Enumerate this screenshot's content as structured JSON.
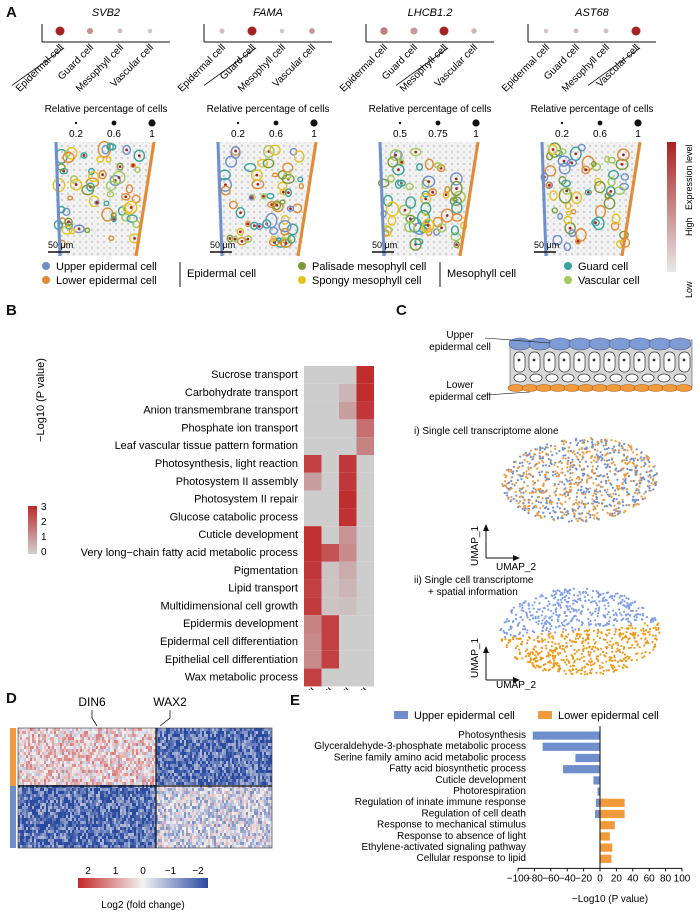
{
  "panel_a": {
    "letter": "A",
    "scale_bar": "50 μm",
    "dotplot_title": "Relative percentage of cells",
    "genes": [
      {
        "name": "SVB2",
        "tick_labels": [
          "0.2",
          "0.6",
          "1"
        ],
        "dots": [
          {
            "size": 1.0,
            "expr": 1.0
          },
          {
            "size": 0.55,
            "expr": 0.4
          },
          {
            "size": 0.35,
            "expr": 0.15
          },
          {
            "size": 0.3,
            "expr": 0.1
          }
        ]
      },
      {
        "name": "FAMA",
        "tick_labels": [
          "0.2",
          "0.6",
          "1"
        ],
        "dots": [
          {
            "size": 0.4,
            "expr": 0.15
          },
          {
            "size": 1.0,
            "expr": 1.0
          },
          {
            "size": 0.3,
            "expr": 0.1
          },
          {
            "size": 0.5,
            "expr": 0.35
          }
        ]
      },
      {
        "name": "LHCB1.2",
        "tick_labels": [
          "0.5",
          "0.75",
          "1"
        ],
        "dots": [
          {
            "size": 0.75,
            "expr": 0.5
          },
          {
            "size": 0.7,
            "expr": 0.35
          },
          {
            "size": 1.0,
            "expr": 1.0
          },
          {
            "size": 0.45,
            "expr": 0.2
          }
        ]
      },
      {
        "name": "AST68",
        "tick_labels": [
          "0.2",
          "0.6",
          "1"
        ],
        "dots": [
          {
            "size": 0.3,
            "expr": 0.1
          },
          {
            "size": 0.35,
            "expr": 0.15
          },
          {
            "size": 0.35,
            "expr": 0.15
          },
          {
            "size": 1.0,
            "expr": 1.0
          }
        ]
      }
    ],
    "cell_types": [
      "Epidermal cell",
      "Guard cell",
      "Mesophyll cell",
      "Vascular cell"
    ],
    "expression_label": "Expression level",
    "expression_high": "High",
    "expression_low": "Low",
    "legend": {
      "upper_epidermal": "Upper epidermal cell",
      "lower_epidermal": "Lower epidermal cell",
      "epidermal_group": "Epidermal cell",
      "palisade": "Palisade mesophyll cell",
      "spongy": "Spongy mesophyll cell",
      "mesophyll_group": "Mesophyll cell",
      "guard": "Guard cell",
      "vascular": "Vascular cell"
    },
    "colors": {
      "upper": "#6f8fcc",
      "lower": "#e28b32",
      "palisade": "#7a9a3a",
      "spongy": "#e6c220",
      "guard": "#3aa39a",
      "vascular": "#a7c55a",
      "dot_high": "#a82222"
    }
  },
  "panel_b": {
    "letter": "B",
    "colorbar_title": "−Log10 (P value)",
    "colorbar_ticks": [
      "3",
      "2",
      "1",
      "0"
    ],
    "chart_data": {
      "type": "heatmap",
      "columns": [
        "Epidermal cell",
        "Guard cell",
        "Mesophyll cell",
        "Vascular cell"
      ],
      "rows": [
        "Sucrose transport",
        "Carbohydrate transport",
        "Anion transmembrane transport",
        "Phosphate ion transport",
        "Leaf vascular tissue pattern formation",
        "Photosynthesis, light reaction",
        "Photosystem II assembly",
        "Photosystem II repair",
        "Glucose catabolic process",
        "Cuticle development",
        "Very long−chain fatty acid metabolic process",
        "Pigmentation",
        "Lipid transport",
        "Multidimensional cell growth",
        "Epidermis development",
        "Epidermal cell differentiation",
        "Epithelial cell differentiation",
        "Wax metabolic process"
      ],
      "values": [
        [
          0,
          0,
          0,
          3.4
        ],
        [
          0,
          0,
          0.5,
          3.4
        ],
        [
          0,
          0,
          1.0,
          3.2
        ],
        [
          0,
          0,
          0,
          2.0
        ],
        [
          0,
          0,
          0,
          1.6
        ],
        [
          3.0,
          0,
          3.2,
          0
        ],
        [
          1.0,
          0,
          3.2,
          0
        ],
        [
          0,
          0,
          3.4,
          0
        ],
        [
          0,
          0,
          3.3,
          0
        ],
        [
          3.3,
          0,
          1.2,
          0
        ],
        [
          3.3,
          2.6,
          1.4,
          0
        ],
        [
          3.2,
          0.2,
          0.7,
          0
        ],
        [
          3.0,
          0.2,
          0.5,
          0
        ],
        [
          3.1,
          0.2,
          0.3,
          0
        ],
        [
          1.6,
          3.0,
          0,
          0
        ],
        [
          1.4,
          3.0,
          0,
          0
        ],
        [
          1.4,
          3.0,
          0,
          0
        ],
        [
          3.0,
          0,
          0,
          0
        ]
      ],
      "vmin": 0,
      "vmax": 3.5
    }
  },
  "panel_c": {
    "letter": "C",
    "upper_label": [
      "Upper",
      "epidermal cell"
    ],
    "lower_label": [
      "Lower",
      "epidermal cell"
    ],
    "plot1_title": "i) Single cell transcriptome alone",
    "plot2_title": [
      "ii) Single cell transcriptome",
      "+ spatial information"
    ],
    "umap1": "UMAP_1",
    "umap2": "UMAP_2"
  },
  "panel_d": {
    "letter": "D",
    "gene1": "DIN6",
    "gene2": "WAX2",
    "colorbar_ticks": [
      "2",
      "1",
      "0",
      "−1",
      "−2"
    ],
    "colorbar_title": "Log2 (fold change)"
  },
  "panel_e": {
    "letter": "E",
    "chart_data": {
      "type": "bar",
      "orientation": "horizontal",
      "categories": [
        "Photosynthesis",
        "Glyceraldehyde-3-phosphate metabolic process",
        "Serine family amino acid metabolic process",
        "Fatty acid biosynthetic process",
        "Cuticle development",
        "Photorespiration",
        "Regulation of innate immune response",
        "Regulation of cell death",
        "Response to mechanical stimulus",
        "Response to absence of light",
        "Ethylene-activated signaling pathway",
        "Cellular response to lipid"
      ],
      "series": [
        {
          "name": "Upper epidermal cell",
          "color": "#6f8fcc",
          "values": [
            -82,
            -70,
            -30,
            -45,
            -8,
            -3,
            -5,
            -6,
            0,
            0,
            0,
            0
          ]
        },
        {
          "name": "Lower epidermal cell",
          "color": "#f09a3c",
          "values": [
            0,
            0,
            0,
            0,
            0,
            0,
            30,
            30,
            18,
            12,
            15,
            14
          ]
        }
      ],
      "xlim": [
        -100,
        100
      ],
      "xticks": [
        "−100",
        "−80",
        "−60",
        "−40",
        "−20",
        "0",
        "20",
        "40",
        "60",
        "80",
        "100"
      ],
      "xlabel": "−Log10 (P value)"
    }
  }
}
